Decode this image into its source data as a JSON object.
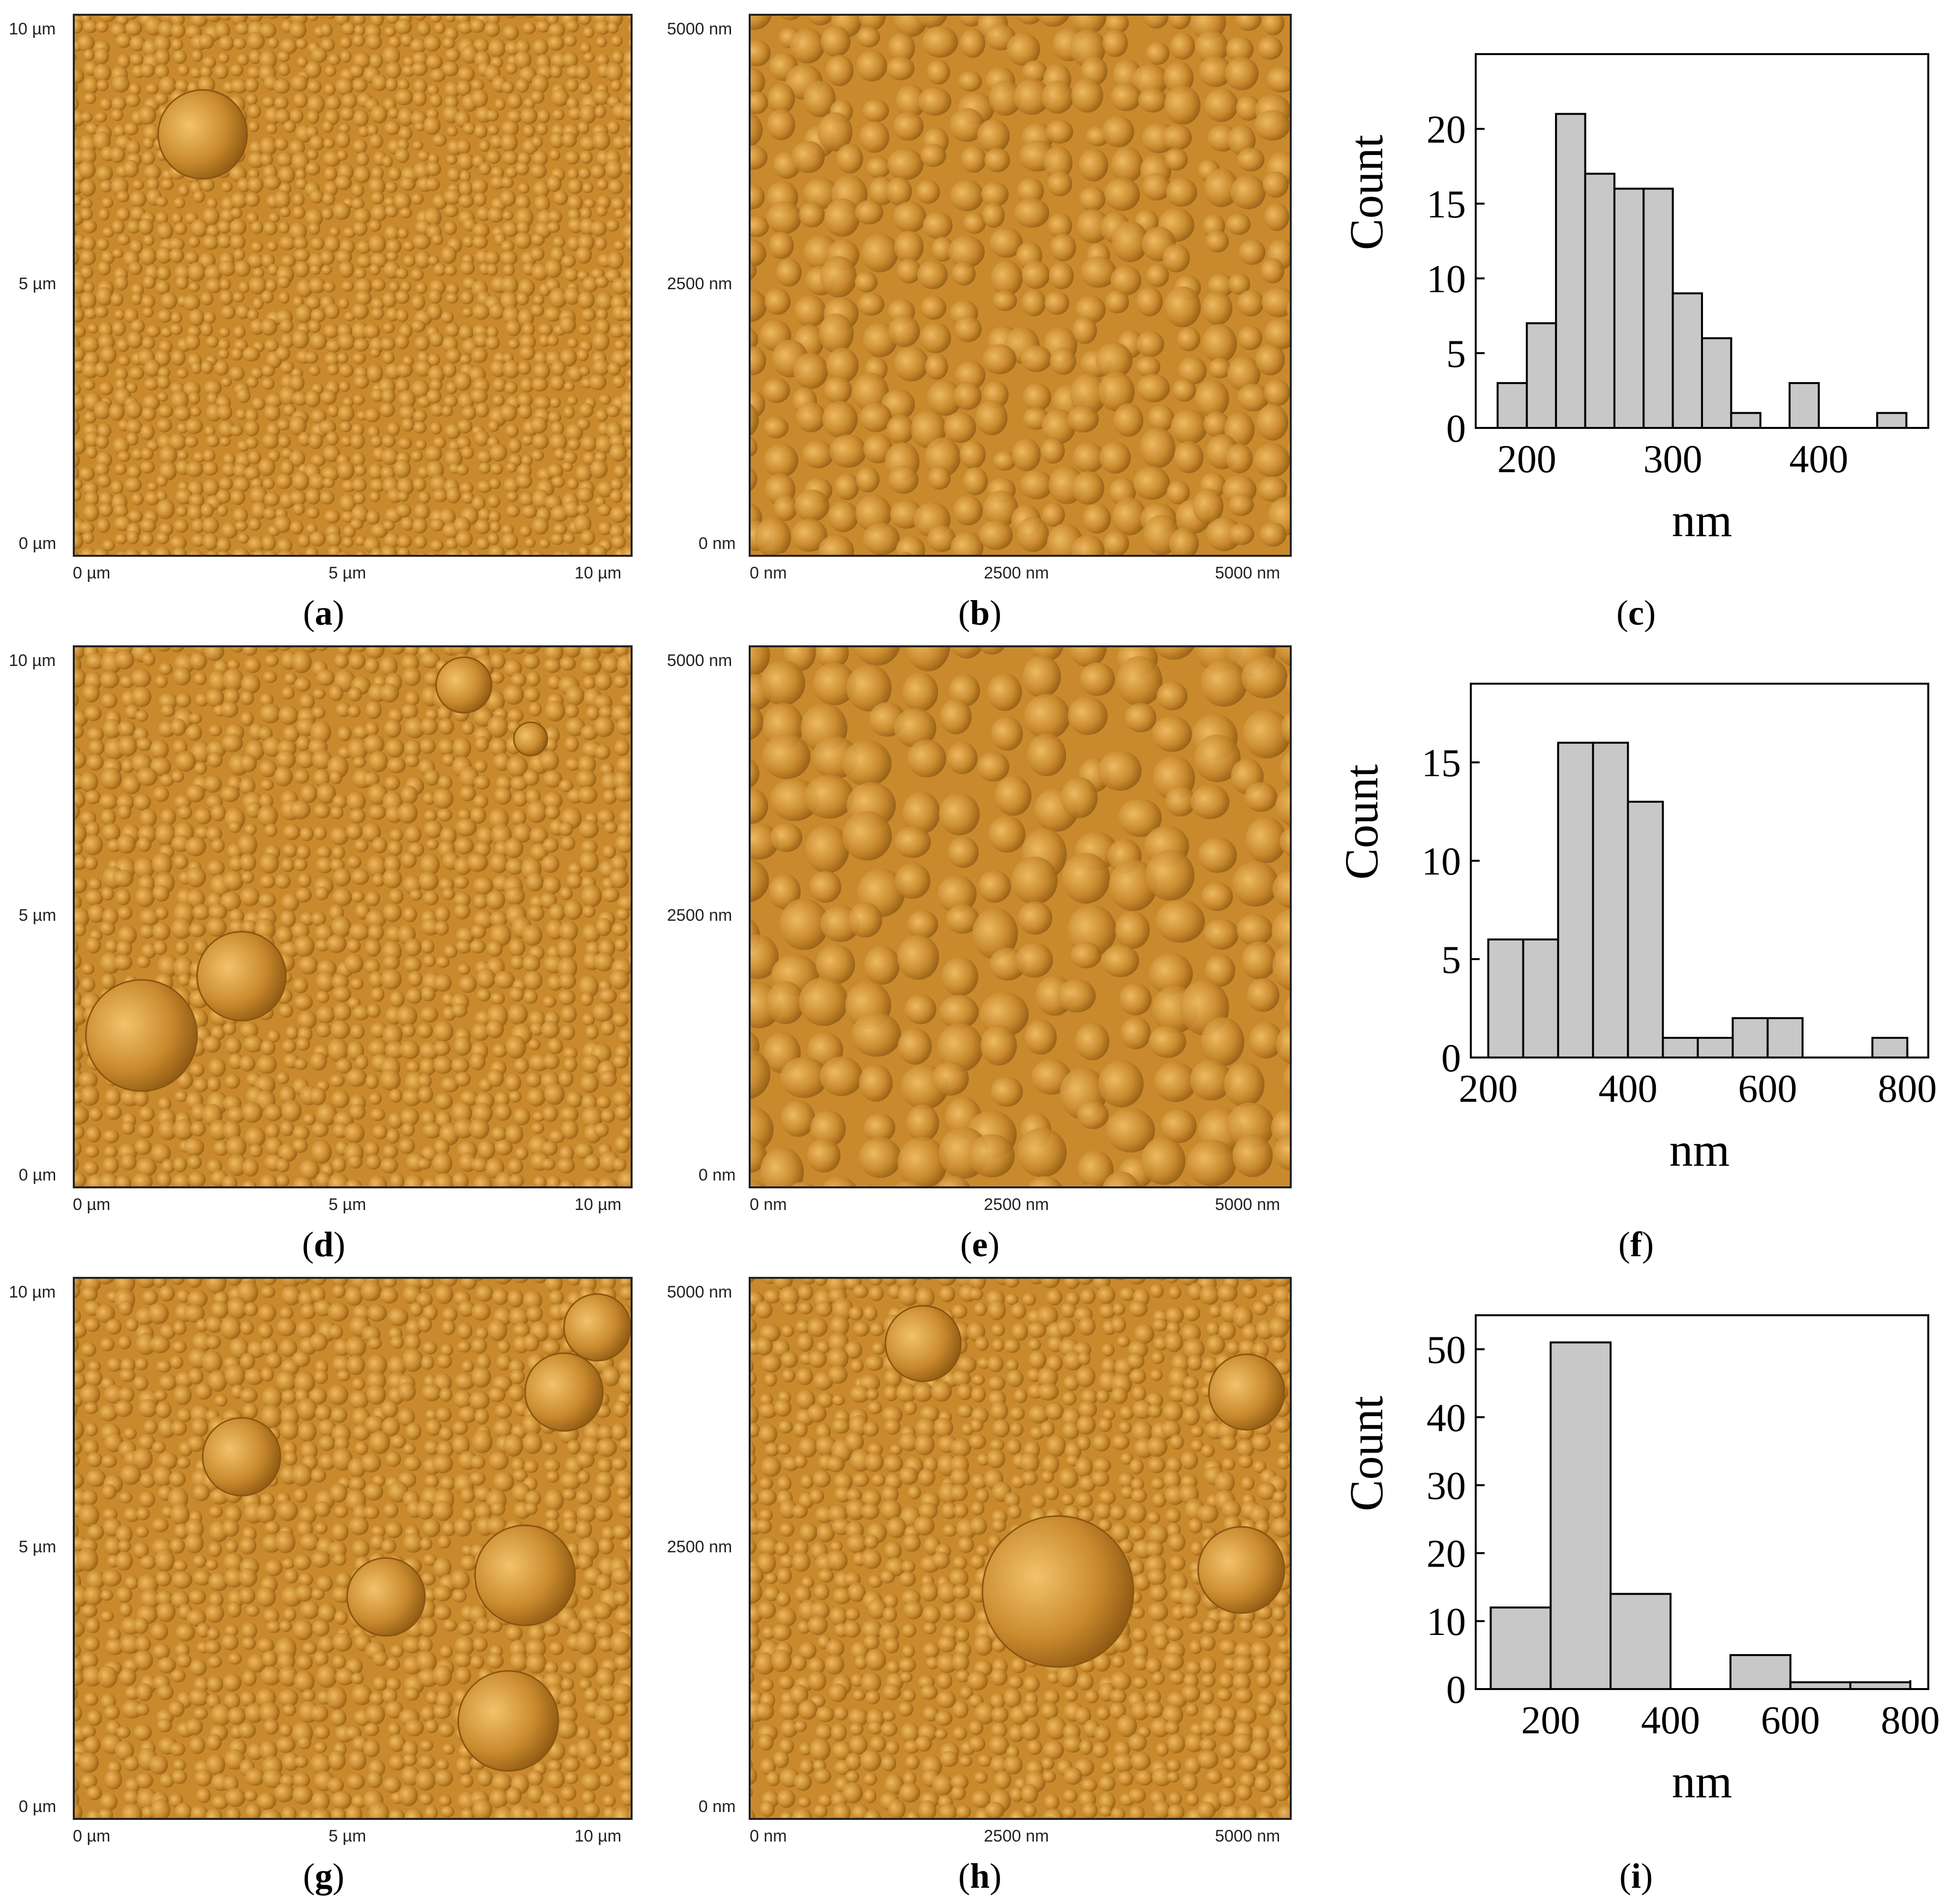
{
  "captions": {
    "a": {
      "open": "(",
      "letter": "a",
      "close": ")"
    },
    "b": {
      "open": "(",
      "letter": "b",
      "close": ")"
    },
    "c": {
      "open": "(",
      "letter": "c",
      "close": ")"
    },
    "d": {
      "open": "(",
      "letter": "d",
      "close": ")"
    },
    "e": {
      "open": "(",
      "letter": "e",
      "close": ")"
    },
    "f": {
      "open": "(",
      "letter": "f",
      "close": ")"
    },
    "g": {
      "open": "(",
      "letter": "g",
      "close": ")"
    },
    "h": {
      "open": "(",
      "letter": "h",
      "close": ")"
    },
    "i": {
      "open": "(",
      "letter": "i",
      "close": ")"
    }
  },
  "afm_um": {
    "y_ticks": [
      "10 µm",
      "5 µm",
      "0 µm"
    ],
    "x_ticks": [
      "0 µm",
      "5 µm",
      "10 µm"
    ]
  },
  "afm_nm": {
    "y_ticks": [
      "5000 nm",
      "2500 nm",
      "0 nm"
    ],
    "x_ticks": [
      "0 nm",
      "2500 nm",
      "5000 nm"
    ]
  },
  "colors": {
    "afm_base": "#c98a2e",
    "afm_light": "#f3c26a",
    "afm_dark": "#8a5510",
    "bar_fill": "#c8c8c8",
    "bar_stroke": "#000000"
  },
  "chart_data": [
    {
      "id": "c",
      "type": "bar",
      "xlabel": "nm",
      "ylabel": "Count",
      "bins": [
        [
          180,
          200
        ],
        [
          200,
          220
        ],
        [
          220,
          240
        ],
        [
          240,
          260
        ],
        [
          260,
          280
        ],
        [
          280,
          300
        ],
        [
          300,
          320
        ],
        [
          320,
          340
        ],
        [
          340,
          360
        ],
        [
          360,
          380
        ],
        [
          380,
          400
        ],
        [
          400,
          420
        ],
        [
          420,
          440
        ],
        [
          440,
          460
        ]
      ],
      "values": [
        3,
        7,
        21,
        17,
        16,
        16,
        9,
        6,
        1,
        0,
        3,
        0,
        0,
        1
      ],
      "xlim": [
        165,
        475
      ],
      "ylim": [
        0,
        25
      ],
      "xticks": [
        200,
        300,
        400
      ],
      "yticks": [
        0,
        5,
        10,
        15,
        20
      ]
    },
    {
      "id": "f",
      "type": "bar",
      "xlabel": "nm",
      "ylabel": "Count",
      "bins": [
        [
          200,
          250
        ],
        [
          250,
          300
        ],
        [
          300,
          350
        ],
        [
          350,
          400
        ],
        [
          400,
          450
        ],
        [
          450,
          500
        ],
        [
          500,
          550
        ],
        [
          550,
          600
        ],
        [
          600,
          650
        ],
        [
          650,
          700
        ],
        [
          700,
          750
        ],
        [
          750,
          800
        ]
      ],
      "values": [
        6,
        6,
        16,
        16,
        13,
        1,
        1,
        2,
        2,
        0,
        0,
        1
      ],
      "xlim": [
        175,
        830
      ],
      "ylim": [
        0,
        19
      ],
      "xticks": [
        200,
        400,
        600,
        800
      ],
      "yticks": [
        0,
        5,
        10,
        15
      ]
    },
    {
      "id": "i",
      "type": "bar",
      "xlabel": "nm",
      "ylabel": "Count",
      "bins": [
        [
          100,
          200
        ],
        [
          200,
          300
        ],
        [
          300,
          400
        ],
        [
          400,
          500
        ],
        [
          500,
          600
        ],
        [
          600,
          700
        ],
        [
          700,
          800
        ]
      ],
      "values": [
        12,
        51,
        14,
        0,
        5,
        1,
        1
      ],
      "xlim": [
        75,
        830
      ],
      "ylim": [
        0,
        55
      ],
      "xticks": [
        200,
        400,
        600,
        800
      ],
      "yticks": [
        0,
        10,
        20,
        30,
        40,
        50
      ]
    }
  ]
}
